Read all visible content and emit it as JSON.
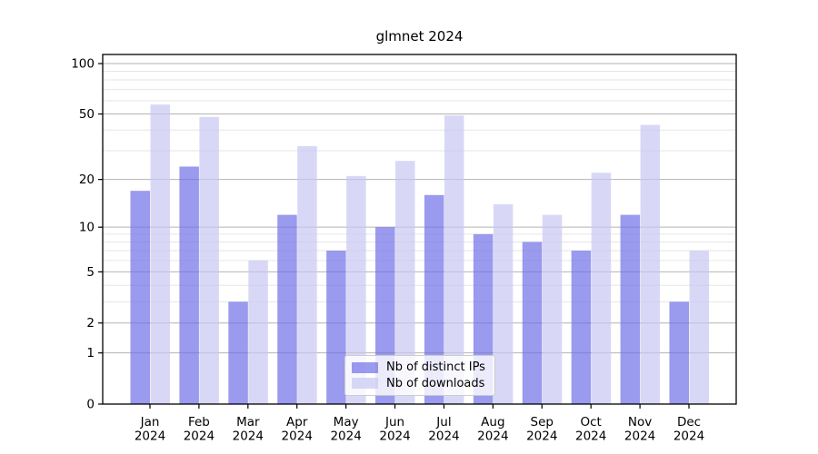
{
  "chart_data": {
    "type": "bar",
    "title": "glmnet 2024",
    "categories": [
      {
        "month": "Jan",
        "year": "2024"
      },
      {
        "month": "Feb",
        "year": "2024"
      },
      {
        "month": "Mar",
        "year": "2024"
      },
      {
        "month": "Apr",
        "year": "2024"
      },
      {
        "month": "May",
        "year": "2024"
      },
      {
        "month": "Jun",
        "year": "2024"
      },
      {
        "month": "Jul",
        "year": "2024"
      },
      {
        "month": "Aug",
        "year": "2024"
      },
      {
        "month": "Sep",
        "year": "2024"
      },
      {
        "month": "Oct",
        "year": "2024"
      },
      {
        "month": "Nov",
        "year": "2024"
      },
      {
        "month": "Dec",
        "year": "2024"
      }
    ],
    "series": [
      {
        "name": "Nb of distinct IPs",
        "color": "#6f6fe7",
        "values": [
          17,
          24,
          3,
          12,
          7,
          10,
          16,
          9,
          8,
          7,
          12,
          3
        ]
      },
      {
        "name": "Nb of downloads",
        "color": "#c7c7f2",
        "values": [
          57,
          48,
          6,
          32,
          21,
          26,
          49,
          14,
          12,
          22,
          43,
          7
        ]
      }
    ],
    "bar_opacity": 0.7,
    "yscale": "log1p",
    "ylim": [
      0,
      113
    ],
    "yticks": [
      0,
      1,
      2,
      5,
      10,
      20,
      50,
      100
    ],
    "minor_gridlines": [
      3,
      4,
      6,
      7,
      8,
      9,
      30,
      40,
      60,
      70,
      80,
      90
    ],
    "grid": true,
    "legend_position": "bottom-center",
    "colors": {
      "major_grid": "#b3b3b3",
      "minor_grid": "#e6e6e6",
      "axis": "#000000",
      "tick_label": "#000000",
      "background": "#ffffff"
    }
  }
}
